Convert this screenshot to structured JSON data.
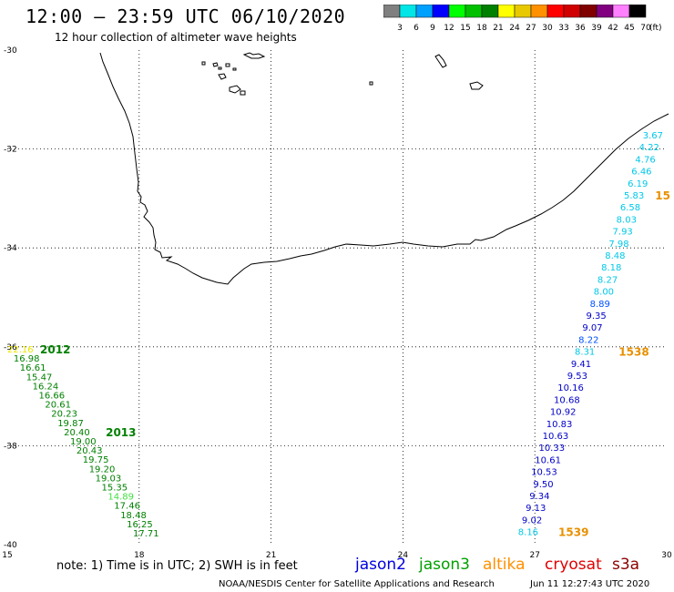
{
  "header": {
    "title": "12:00 – 23:59 UTC 06/10/2020",
    "subtitle": "12 hour collection of altimeter wave heights"
  },
  "legend": {
    "values": [
      "3",
      "6",
      "9",
      "12",
      "15",
      "18",
      "21",
      "24",
      "27",
      "30",
      "33",
      "36",
      "39",
      "42",
      "45",
      "70"
    ],
    "colors": [
      "#808080",
      "#00e5e5",
      "#00a0ff",
      "#0000ff",
      "#00ff00",
      "#00c000",
      "#008000",
      "#ffff00",
      "#e8c800",
      "#ff9000",
      "#ff0000",
      "#d00000",
      "#800000",
      "#800080",
      "#ff80ff",
      "#000000"
    ],
    "unit": "(ft)"
  },
  "map": {
    "lat_labels": [
      "-30",
      "-32",
      "-34",
      "-36",
      "-38",
      "-40"
    ],
    "lon_labels": [
      "15",
      "18",
      "21",
      "24",
      "27",
      "30"
    ],
    "grid": true
  },
  "tracks": [
    {
      "id": "east",
      "values": [
        "3.67",
        "4.22",
        "4.76",
        "6.46",
        "6.19",
        "5.83",
        "6.58",
        "8.03",
        "7.93",
        "7.98",
        "8.48",
        "8.18",
        "8.27",
        "8.00",
        "8.89",
        "9.35",
        "9.07",
        "8.22",
        "8.31",
        "9.41",
        "9.53",
        "10.16",
        "10.68",
        "10.92",
        "10.83",
        "10.63",
        "10.33",
        "10.61",
        "10.53",
        "9.50",
        "9.34",
        "9.13",
        "9.02",
        "8.16"
      ],
      "colors": [
        "#00c8e8",
        "#00c8e8",
        "#00c8e8",
        "#00c8e8",
        "#00c8e8",
        "#00c8e8",
        "#00c8e8",
        "#00c8e8",
        "#00c8e8",
        "#00c8e8",
        "#00c8e8",
        "#00c8e8",
        "#00c8e8",
        "#00c8e8",
        "#0050ff",
        "#0000c8",
        "#0000c8",
        "#0050ff",
        "#00c8e8",
        "#0000c8",
        "#0000c8",
        "#0000c8",
        "#0000c8",
        "#0000c8",
        "#0000c8",
        "#0000c8",
        "#0000c8",
        "#0000c8",
        "#0000c8",
        "#0000c8",
        "#0000c8",
        "#0000c8",
        "#0000c8",
        "#00c8e8"
      ],
      "times": [
        {
          "label": "15",
          "color": "#e89000",
          "index": 5
        },
        {
          "label": "1538",
          "color": "#e89000",
          "index": 18
        },
        {
          "label": "1539",
          "color": "#e89000",
          "index": 33
        }
      ]
    },
    {
      "id": "west",
      "values": [
        "22.16",
        "16.98",
        "16.61",
        "15.47",
        "16.24",
        "16.66",
        "20.61",
        "20.23",
        "19.87",
        "20.40",
        "19.00",
        "20.43",
        "19.75",
        "19.20",
        "19.03",
        "15.35",
        "14.89",
        "17.46",
        "18.48",
        "16.25",
        "17.71"
      ],
      "colors": [
        "#e8e800",
        "#008000",
        "#008000",
        "#008000",
        "#008000",
        "#008000",
        "#008000",
        "#008000",
        "#008000",
        "#008000",
        "#008000",
        "#008000",
        "#008000",
        "#008000",
        "#008000",
        "#008000",
        "#40e040",
        "#008000",
        "#008000",
        "#008000",
        "#008000"
      ],
      "times": [
        {
          "label": "2012",
          "color": "#008000",
          "index": 0
        },
        {
          "label": "2013",
          "color": "#008000",
          "index": 9
        }
      ]
    }
  ],
  "footer": {
    "note": "note: 1) Time is in UTC; 2) SWH is in feet",
    "satellites": [
      {
        "name": "jason2",
        "color": "#0000e0"
      },
      {
        "name": "jason3",
        "color": "#00a000"
      },
      {
        "name": "altika",
        "color": "#ff9000"
      },
      {
        "name": "cryosat",
        "color": "#e00000"
      },
      {
        "name": "s3a",
        "color": "#8b0000"
      }
    ],
    "credit": "NOAA/NESDIS Center for Satellite Applications and Research",
    "timestamp": "Jun 11 12:27:43 UTC 2020"
  }
}
